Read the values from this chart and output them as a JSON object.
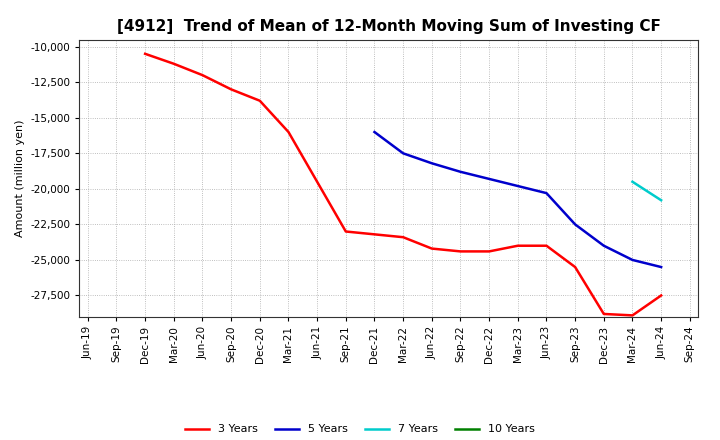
{
  "title": "[4912]  Trend of Mean of 12-Month Moving Sum of Investing CF",
  "ylabel": "Amount (million yen)",
  "background_color": "#ffffff",
  "grid_color": "#aaaaaa",
  "ylim": [
    -29000,
    -9500
  ],
  "yticks": [
    -27500,
    -25000,
    -22500,
    -20000,
    -17500,
    -15000,
    -12500,
    -10000
  ],
  "series": {
    "3years": {
      "color": "#ff0000",
      "label": "3 Years",
      "x": [
        "Dec-19",
        "Mar-20",
        "Jun-20",
        "Sep-20",
        "Dec-20",
        "Mar-21",
        "Jun-21",
        "Sep-21",
        "Dec-21",
        "Mar-22",
        "Jun-22",
        "Sep-22",
        "Dec-22",
        "Mar-23",
        "Jun-23",
        "Sep-23",
        "Dec-23",
        "Mar-24",
        "Jun-24"
      ],
      "y": [
        -10500,
        -11200,
        -12000,
        -13000,
        -13800,
        -16000,
        -19500,
        -23000,
        -23200,
        -23400,
        -24200,
        -24400,
        -24400,
        -24000,
        -24000,
        -25500,
        -28800,
        -28900,
        -27500
      ]
    },
    "5years": {
      "color": "#0000cc",
      "label": "5 Years",
      "x": [
        "Dec-21",
        "Mar-22",
        "Jun-22",
        "Sep-22",
        "Dec-22",
        "Mar-23",
        "Jun-23",
        "Sep-23",
        "Dec-23",
        "Mar-24",
        "Jun-24"
      ],
      "y": [
        -16000,
        -17500,
        -18200,
        -18800,
        -19300,
        -19800,
        -20300,
        -22500,
        -24000,
        -25000,
        -25500
      ]
    },
    "7years": {
      "color": "#00cccc",
      "label": "7 Years",
      "x": [
        "Mar-24",
        "Jun-24"
      ],
      "y": [
        -19500,
        -20800
      ]
    },
    "10years": {
      "color": "#008000",
      "label": "10 Years",
      "x": [],
      "y": []
    }
  },
  "xtick_labels": [
    "Jun-19",
    "Sep-19",
    "Dec-19",
    "Mar-20",
    "Jun-20",
    "Sep-20",
    "Dec-20",
    "Mar-21",
    "Jun-21",
    "Sep-21",
    "Dec-21",
    "Mar-22",
    "Jun-22",
    "Sep-22",
    "Dec-22",
    "Mar-23",
    "Jun-23",
    "Sep-23",
    "Dec-23",
    "Mar-24",
    "Jun-24",
    "Sep-24"
  ],
  "title_fontsize": 11,
  "label_fontsize": 8,
  "tick_fontsize": 7.5,
  "linewidth": 1.8
}
